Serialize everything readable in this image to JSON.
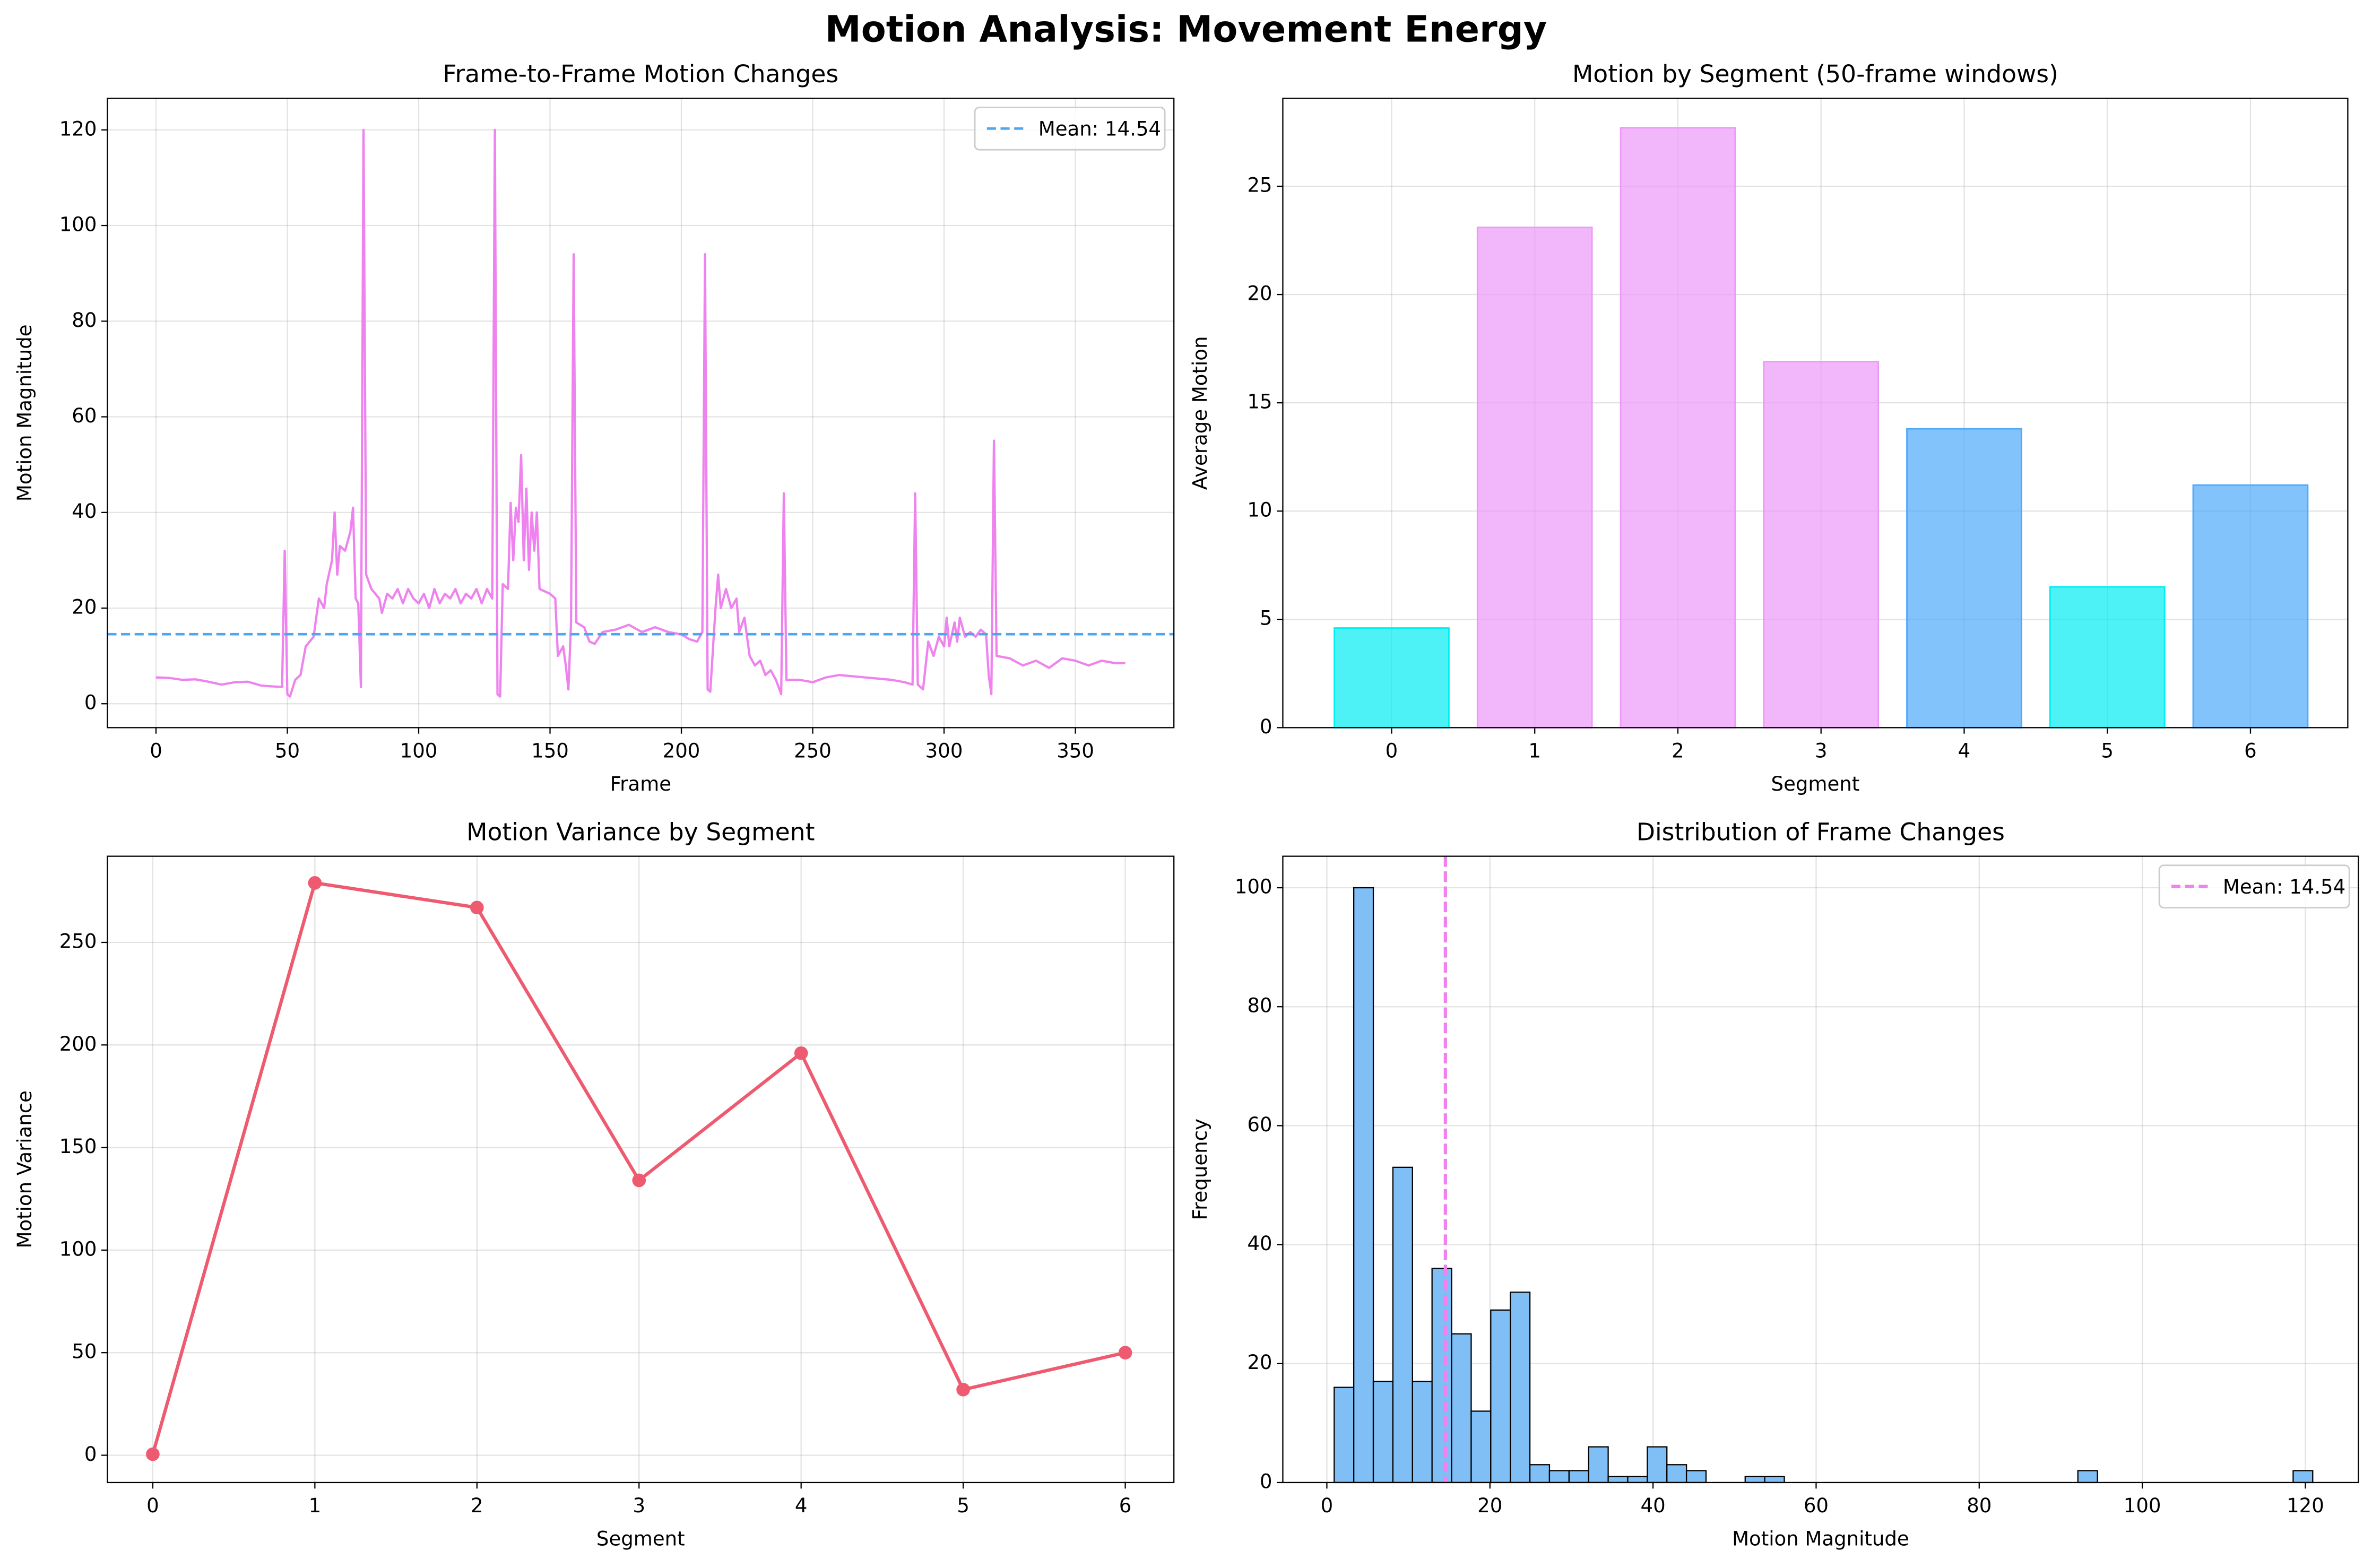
{
  "title": "Motion Analysis: Movement Energy",
  "chart_data": [
    {
      "type": "line",
      "title": "Frame-to-Frame Motion Changes",
      "x_label": "Frame",
      "y_label": "Motion Magnitude",
      "color": "#ee82ee",
      "grid": true,
      "legend": "upper right",
      "x": [
        0,
        5,
        10,
        15,
        20,
        25,
        30,
        35,
        40,
        45,
        48,
        49,
        50,
        51,
        53,
        55,
        57,
        60,
        62,
        64,
        65,
        67,
        68,
        69,
        70,
        72,
        74,
        75,
        76,
        77,
        78,
        79,
        80,
        82,
        85,
        86,
        88,
        90,
        92,
        94,
        96,
        98,
        100,
        102,
        104,
        106,
        108,
        110,
        112,
        114,
        116,
        118,
        120,
        122,
        124,
        126,
        128,
        129,
        130,
        131,
        132,
        134,
        135,
        136,
        137,
        138,
        139,
        140,
        141,
        142,
        143,
        144,
        145,
        146,
        150,
        152,
        153,
        155,
        156,
        157,
        158,
        159,
        160,
        163,
        165,
        167,
        170,
        175,
        180,
        185,
        190,
        195,
        200,
        203,
        206,
        208,
        209,
        210,
        211,
        213,
        214,
        215,
        217,
        219,
        221,
        222,
        224,
        226,
        228,
        230,
        232,
        234,
        236,
        238,
        239,
        240,
        245,
        250,
        255,
        260,
        270,
        280,
        285,
        288,
        289,
        290,
        292,
        294,
        296,
        298,
        300,
        301,
        302,
        304,
        305,
        306,
        308,
        310,
        312,
        314,
        316,
        317,
        318,
        319,
        320,
        325,
        330,
        335,
        340,
        345,
        350,
        355,
        360,
        365,
        369
      ],
      "values": [
        5.5,
        5.4,
        5.0,
        5.1,
        4.6,
        4.0,
        4.5,
        4.6,
        3.8,
        3.6,
        3.5,
        32,
        2,
        1.5,
        5,
        6,
        12,
        14,
        22,
        20,
        25,
        30,
        40,
        27,
        33,
        32,
        36,
        41,
        22,
        21,
        3.5,
        120,
        27,
        24,
        22,
        19,
        23,
        22,
        24,
        21,
        24,
        22,
        21,
        23,
        20,
        24,
        21,
        23,
        22,
        24,
        21,
        23,
        22,
        24,
        21,
        24,
        22,
        120,
        2,
        1.5,
        25,
        24,
        42,
        30,
        41,
        38,
        52,
        30,
        45,
        28,
        40,
        32,
        40,
        24,
        23,
        22,
        10,
        12,
        8,
        3,
        17,
        94,
        17,
        16,
        13,
        12.5,
        15,
        15.5,
        16.5,
        15,
        16,
        15,
        14.5,
        13.5,
        13,
        15,
        94,
        3,
        2.5,
        20,
        27,
        20,
        24,
        20,
        22,
        15,
        18,
        10,
        8,
        9,
        6,
        7,
        5,
        2,
        44,
        5,
        5,
        4.5,
        5.5,
        6,
        5.5,
        5,
        4.5,
        4,
        44,
        4,
        3,
        13,
        10,
        14,
        12,
        18,
        12,
        17,
        13,
        18,
        14,
        15,
        14,
        15.5,
        14.5,
        6,
        2,
        55,
        10,
        9.5,
        8,
        9,
        7.5,
        9.5,
        9,
        8,
        9,
        8.5,
        8.5
      ],
      "mean_line": {
        "value": 14.54,
        "label": "Mean: 14.54",
        "color": "#4da6f2"
      },
      "xlim": [
        -18.5,
        387.5
      ],
      "xticks": [
        0,
        50,
        100,
        150,
        200,
        250,
        300,
        350
      ],
      "ylim": [
        -5,
        126.6
      ],
      "yticks": [
        0,
        20,
        40,
        60,
        80,
        100,
        120
      ]
    },
    {
      "type": "bar",
      "title": "Motion by Segment (50-frame windows)",
      "x_label": "Segment",
      "y_label": "Average Motion",
      "grid": true,
      "alpha": 0.7,
      "bar_width": 0.8,
      "x": [
        0,
        1,
        2,
        3,
        4,
        5,
        6
      ],
      "values": [
        4.6,
        23.1,
        27.7,
        16.9,
        13.8,
        6.5,
        11.2
      ],
      "colors": [
        "#00edf2",
        "#ed98f8",
        "#ed98f8",
        "#ed98f8",
        "#4da9fa",
        "#00edf2",
        "#4da9fa"
      ],
      "xlim": [
        -0.76,
        6.68
      ],
      "xticks": [
        0,
        1,
        2,
        3,
        4,
        5,
        6
      ],
      "ylim": [
        0,
        29.06
      ],
      "yticks": [
        0,
        5,
        10,
        15,
        20,
        25
      ]
    },
    {
      "type": "line",
      "title": "Motion Variance by Segment",
      "x_label": "Segment",
      "y_label": "Motion Variance",
      "color": "#ee5a6f",
      "markers": true,
      "grid": true,
      "x": [
        0,
        1,
        2,
        3,
        4,
        5,
        6
      ],
      "values": [
        0.5,
        279,
        267,
        134,
        196,
        32,
        50
      ],
      "xlim": [
        -0.28,
        6.3
      ],
      "xticks": [
        0,
        1,
        2,
        3,
        4,
        5,
        6
      ],
      "ylim": [
        -13.3,
        292
      ],
      "yticks": [
        0,
        50,
        100,
        150,
        200,
        250
      ]
    },
    {
      "type": "histogram",
      "title": "Distribution of Frame Changes",
      "x_label": "Motion Magnitude",
      "y_label": "Frequency",
      "color": "#7fbff5",
      "edge_color": "#000000",
      "grid": true,
      "legend": "upper right",
      "bins": [
        0.9,
        3.3,
        5.7,
        8.1,
        10.5,
        12.9,
        15.3,
        17.7,
        20.1,
        22.5,
        24.9,
        27.3,
        29.7,
        32.1,
        34.5,
        36.9,
        39.3,
        41.7,
        44.1,
        46.5,
        48.9,
        51.3,
        53.7,
        56.1,
        58.5,
        60.9,
        63.3,
        65.7,
        68.1,
        70.5,
        72.9,
        75.3,
        77.7,
        80.1,
        82.5,
        84.9,
        87.3,
        89.7,
        92.1,
        94.5,
        96.9,
        99.3,
        101.7,
        104.1,
        106.5,
        108.9,
        111.3,
        113.7,
        116.1,
        118.5,
        120.9
      ],
      "values": [
        16,
        100,
        17,
        53,
        17,
        36,
        25,
        12,
        29,
        32,
        3,
        2,
        2,
        6,
        1,
        1,
        6,
        3,
        2,
        0,
        0,
        1,
        1,
        0,
        0,
        0,
        0,
        0,
        0,
        0,
        0,
        0,
        0,
        0,
        0,
        0,
        0,
        0,
        2,
        0,
        0,
        0,
        0,
        0,
        0,
        0,
        0,
        0,
        0,
        2
      ],
      "mean_line": {
        "value": 14.54,
        "label": "Mean: 14.54",
        "color": "#ee82ee"
      },
      "xlim": [
        -5.4,
        126.5
      ],
      "xticks": [
        0,
        20,
        40,
        60,
        80,
        100,
        120
      ],
      "ylim": [
        0,
        105.3
      ],
      "yticks": [
        0,
        20,
        40,
        60,
        80,
        100
      ]
    }
  ]
}
